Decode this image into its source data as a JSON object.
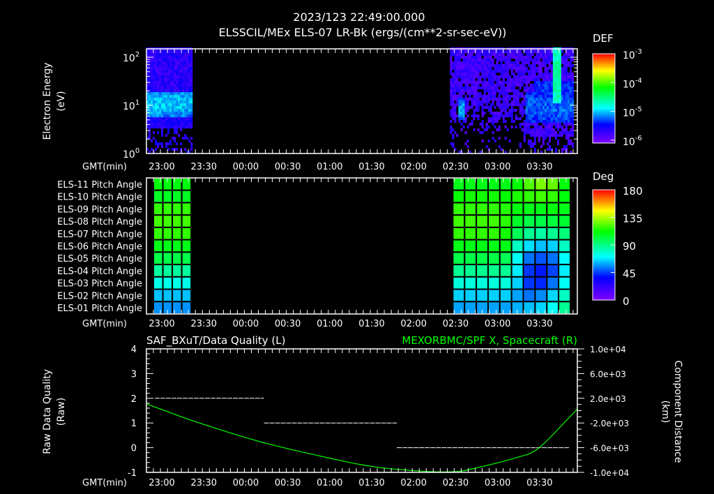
{
  "header": {
    "datetime": "2023/123 22:49:00.000",
    "title": "ELSSCIL/MEx ELS-07 LR-Bk  (ergs/(cm**2-sr-sec-eV))"
  },
  "time_axis": {
    "label": "GMT(min)",
    "start": "22:49",
    "end": "03:57",
    "ticks": [
      "23:00",
      "23:30",
      "00:00",
      "00:30",
      "01:00",
      "01:30",
      "02:00",
      "02:30",
      "03:00",
      "03:30"
    ]
  },
  "colors": {
    "background": "#000000",
    "axis": "#ffffff",
    "spf_line": "#00ff00",
    "quality_line": "#ffffff"
  },
  "chart_data": [
    {
      "type": "heatmap",
      "name": "electron-energy-spectrogram",
      "ylabel": [
        "Electron Energy",
        "(eV)"
      ],
      "y_scale": "log",
      "ylim": [
        1,
        150
      ],
      "y_ticks": [
        {
          "base": "10",
          "exp": "0",
          "value": 1
        },
        {
          "base": "10",
          "exp": "1",
          "value": 10
        },
        {
          "base": "10",
          "exp": "2",
          "value": 100
        }
      ],
      "colorbar": {
        "label": "DEF",
        "log_range": [
          -6.1,
          -3
        ],
        "ticks": [
          {
            "base": "10",
            "exp": "-3",
            "value": -3
          },
          {
            "base": "10",
            "exp": "-4",
            "value": -4
          },
          {
            "base": "10",
            "exp": "-5",
            "value": -5
          },
          {
            "base": "10",
            "exp": "-6",
            "value": -6
          }
        ]
      },
      "data_intervals": [
        [
          "22:49",
          "23:22"
        ],
        [
          "02:26",
          "03:54"
        ]
      ],
      "features": [
        {
          "t": [
            "22:49",
            "23:22"
          ],
          "log_e": [
            0.75,
            1.25
          ],
          "log_def": -5.0
        },
        {
          "t": [
            "22:49",
            "23:22"
          ],
          "log_e": [
            0.5,
            0.75
          ],
          "log_def": -5.6
        },
        {
          "t": [
            "02:31",
            "02:36"
          ],
          "log_e": [
            0.65,
            1.15
          ],
          "log_def": -5.1
        },
        {
          "t": [
            "03:19",
            "03:57"
          ],
          "log_e": [
            0.6,
            1.25
          ],
          "log_def": -5.25
        },
        {
          "t": [
            "03:26",
            "03:57"
          ],
          "log_e": [
            1.15,
            1.5
          ],
          "log_def": -5.35
        },
        {
          "t": [
            "03:39",
            "03:45"
          ],
          "log_e": [
            1.0,
            2.15
          ],
          "log_def": -4.6
        }
      ]
    },
    {
      "type": "heatmap",
      "name": "pitch-angle",
      "rows": [
        "ELS-11 Pitch Angle",
        "ELS-10 Pitch Angle",
        "ELS-09 Pitch Angle",
        "ELS-08 Pitch Angle",
        "ELS-07 Pitch Angle",
        "ELS-06 Pitch Angle",
        "ELS-05 Pitch Angle",
        "ELS-04 Pitch Angle",
        "ELS-03 Pitch Angle",
        "ELS-02 Pitch Angle",
        "ELS-01 Pitch Angle"
      ],
      "colorbar": {
        "label": "Deg",
        "range": [
          0,
          180
        ],
        "ticks": [
          "180",
          "135",
          "90",
          "45",
          "0"
        ],
        "tick_values": [
          180,
          135,
          90,
          45,
          0
        ]
      },
      "blocks": [
        {
          "start": "22:54",
          "end": "23:21",
          "values": [
            [
              110,
              110,
              110,
              110
            ],
            [
              106,
              106,
              106,
              106
            ],
            [
              118,
              118,
              118,
              118
            ],
            [
              120,
              120,
              120,
              120
            ],
            [
              118,
              118,
              118,
              118
            ],
            [
              108,
              108,
              108,
              108
            ],
            [
              100,
              100,
              100,
              100
            ],
            [
              86,
              86,
              86,
              86
            ],
            [
              74,
              74,
              74,
              74
            ],
            [
              62,
              62,
              62,
              62
            ],
            [
              56,
              56,
              56,
              56
            ]
          ]
        },
        {
          "start": "02:28",
          "end": "03:52",
          "values": [
            [
              108,
              108,
              108,
              108,
              108,
              112,
              122,
              128,
              125,
              110
            ],
            [
              112,
              114,
              114,
              114,
              112,
              115,
              118,
              120,
              118,
              110
            ],
            [
              118,
              118,
              118,
              118,
              116,
              110,
              108,
              108,
              110,
              108
            ],
            [
              120,
              120,
              120,
              120,
              117,
              105,
              100,
              100,
              102,
              104
            ],
            [
              118,
              118,
              118,
              118,
              114,
              98,
              88,
              85,
              88,
              92
            ],
            [
              108,
              108,
              108,
              108,
              108,
              80,
              66,
              62,
              64,
              80
            ],
            [
              100,
              100,
              100,
              100,
              98,
              72,
              52,
              48,
              52,
              70
            ],
            [
              88,
              88,
              88,
              88,
              88,
              68,
              44,
              40,
              46,
              68
            ],
            [
              76,
              76,
              76,
              76,
              76,
              64,
              44,
              42,
              52,
              72
            ],
            [
              64,
              64,
              64,
              64,
              64,
              58,
              52,
              55,
              65,
              80
            ],
            [
              58,
              58,
              58,
              58,
              58,
              60,
              62,
              65,
              72,
              88
            ]
          ]
        }
      ]
    },
    {
      "type": "line",
      "name": "quality-and-position",
      "title_left": "SAF_BXuT/Data Quality (L)",
      "title_right": "MEXORBMC/SPF X, Spacecraft (R)",
      "ylabel_left": [
        "Raw Data Quality",
        "(Raw)"
      ],
      "ylim_left": [
        -1,
        4
      ],
      "left_ticks": [
        "4",
        "3",
        "2",
        "1",
        "0",
        "-1"
      ],
      "left_tick_values": [
        4,
        3,
        2,
        1,
        0,
        -1
      ],
      "ylabel_right": [
        "Component Distance",
        "(km)"
      ],
      "ylim_right": [
        -10000,
        10000
      ],
      "right_ticks": [
        "1.0e+04",
        "6.0e+03",
        "2.0e+03",
        "-2.0e+03",
        "-6.0e+03",
        "-1.0e+04"
      ],
      "right_tick_values": [
        10000,
        6000,
        2000,
        -2000,
        -6000,
        -10000
      ],
      "series": [
        {
          "name": "Data Quality",
          "axis": "left",
          "segments": [
            {
              "start": "22:55",
              "end": "00:13",
              "value": 2
            },
            {
              "start": "00:13",
              "end": "01:48",
              "value": 1
            },
            {
              "start": "01:48",
              "end": "03:51",
              "value": 0
            }
          ]
        },
        {
          "name": "SPF X",
          "axis": "right",
          "points": [
            [
              "22:49",
              1100
            ],
            [
              "23:25",
              -1860
            ],
            [
              "00:12",
              -5140
            ],
            [
              "01:00",
              -7700
            ],
            [
              "01:33",
              -9130
            ],
            [
              "02:10",
              -9850
            ],
            [
              "02:31",
              -9850
            ],
            [
              "02:44",
              -9320
            ],
            [
              "03:12",
              -7700
            ],
            [
              "03:29",
              -6130
            ],
            [
              "03:52",
              -910
            ],
            [
              "03:57",
              300
            ]
          ]
        }
      ]
    }
  ]
}
